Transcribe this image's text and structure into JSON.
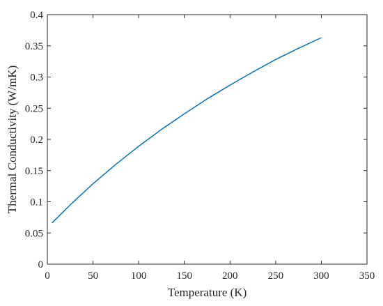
{
  "chart_data": {
    "type": "line",
    "xlabel": "Temperature (K)",
    "ylabel": "Thermal Conductivity (W/mK)",
    "xlim": [
      0,
      350
    ],
    "ylim": [
      0,
      0.4
    ],
    "xticks": [
      0,
      50,
      100,
      150,
      200,
      250,
      300,
      350
    ],
    "yticks": [
      0,
      0.05,
      0.1,
      0.15,
      0.2,
      0.25,
      0.3,
      0.35,
      0.4
    ],
    "xtick_labels": [
      "0",
      "50",
      "100",
      "150",
      "200",
      "250",
      "300",
      "350"
    ],
    "ytick_labels": [
      "0",
      "0.05",
      "0.1",
      "0.15",
      "0.2",
      "0.25",
      "0.3",
      "0.35",
      "0.4"
    ],
    "grid": false,
    "box": true,
    "series": [
      {
        "color": "#0072BD",
        "x": [
          5,
          25,
          50,
          75,
          100,
          125,
          150,
          175,
          200,
          225,
          250,
          275,
          300
        ],
        "y": [
          0.066,
          0.095,
          0.129,
          0.16,
          0.189,
          0.216,
          0.241,
          0.265,
          0.287,
          0.308,
          0.328,
          0.346,
          0.363
        ]
      }
    ]
  }
}
